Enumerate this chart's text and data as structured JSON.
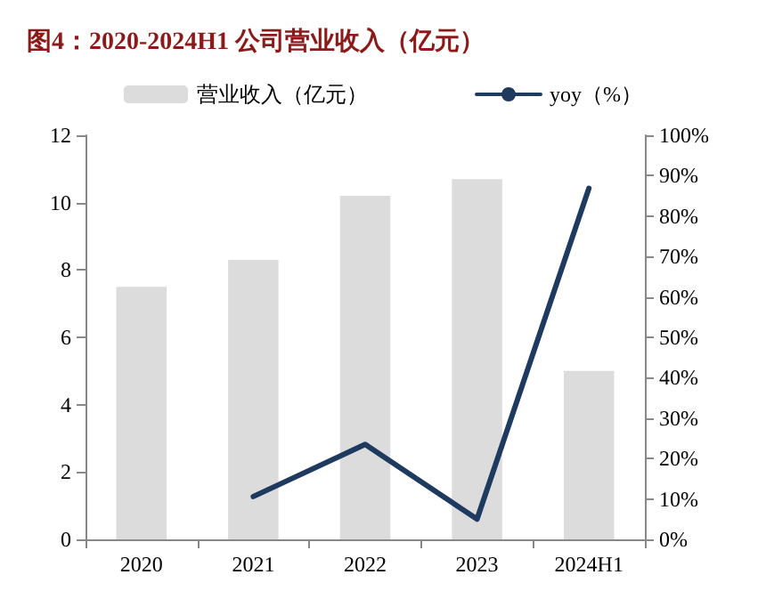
{
  "chart_data": {
    "type": "bar",
    "title": "图4：2020-2024H1 公司营业收入（亿元）",
    "categories": [
      "2020",
      "2021",
      "2022",
      "2023",
      "2024H1"
    ],
    "series": [
      {
        "name": "营业收入（亿元）",
        "color": "#dcdcdc",
        "values": [
          7.5,
          8.3,
          10.2,
          10.7,
          5.0
        ]
      },
      {
        "name": "yoy（%）",
        "type": "line",
        "axis": "y2",
        "color": "#1f3a5f",
        "values": [
          null,
          10.6,
          23.5,
          5.0,
          86.9
        ]
      }
    ],
    "ylim": [
      0,
      12
    ],
    "yticks": [
      0,
      2,
      4,
      6,
      8,
      10,
      12
    ],
    "y2lim": [
      0,
      100
    ],
    "y2ticks": [
      {
        "value": 0,
        "label": "0%"
      },
      {
        "value": 10,
        "label": "10%"
      },
      {
        "value": 20,
        "label": "20%"
      },
      {
        "value": 30,
        "label": "30%"
      },
      {
        "value": 40,
        "label": "40%"
      },
      {
        "value": 50,
        "label": "50%"
      },
      {
        "value": 60,
        "label": "60%"
      },
      {
        "value": 70,
        "label": "70%"
      },
      {
        "value": 80,
        "label": "80%"
      },
      {
        "value": 90,
        "label": "90%"
      },
      {
        "value": 100,
        "label": "100%"
      }
    ],
    "grid": false,
    "legend": "top",
    "marker": "none"
  }
}
